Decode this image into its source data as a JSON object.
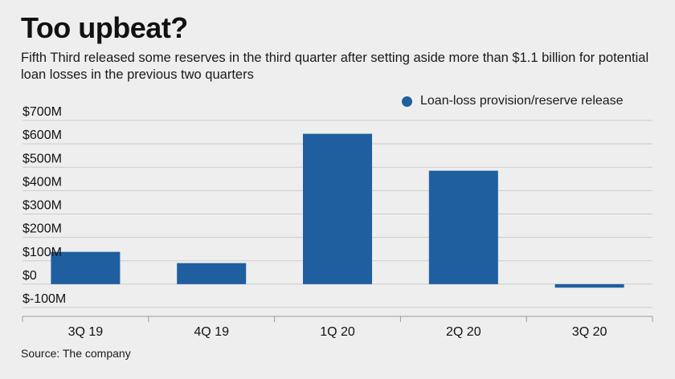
{
  "title": "Too upbeat?",
  "subtitle": "Fifth Third released some reserves in the third quarter after setting aside more than $1.1 billion for potential loan losses in the previous two quarters",
  "source": "Source: The company",
  "colors": {
    "bar": "#1f5f9f",
    "grid": "#cccccc",
    "axis": "#999999",
    "text": "#111111"
  },
  "chart_data": {
    "type": "bar",
    "categories": [
      "3Q 19",
      "4Q 19",
      "1Q 20",
      "2Q 20",
      "3Q 20"
    ],
    "series": [
      {
        "name": "Loan-loss provision/reserve release",
        "values": [
          138,
          90,
          643,
          485,
          -15
        ]
      }
    ],
    "ylim": [
      -100,
      700
    ],
    "yticks": [
      700,
      600,
      500,
      400,
      300,
      200,
      100,
      0,
      -100
    ],
    "ytick_labels": [
      "$700M",
      "$600M",
      "$500M",
      "$400M",
      "$300M",
      "$200M",
      "$100M",
      "$0",
      "$-100M"
    ],
    "grid": true,
    "legend_position": "top-right",
    "xlabel": "",
    "ylabel": ""
  }
}
